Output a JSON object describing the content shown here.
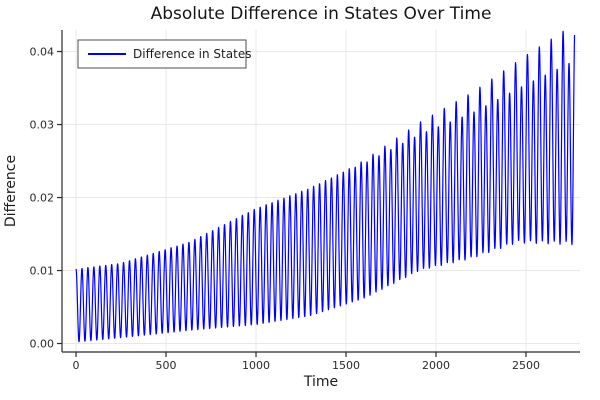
{
  "chart_data": {
    "type": "line",
    "title": "Absolute Difference in States Over Time",
    "xlabel": "Time",
    "ylabel": "Difference",
    "legend": {
      "position": "top-left",
      "entries": [
        {
          "label": "Difference in States",
          "color": "#0000ff"
        }
      ]
    },
    "axes": {
      "xlim": [
        -78,
        2800
      ],
      "ylim": [
        -0.00116,
        0.04295
      ],
      "xticks": [
        0,
        500,
        1000,
        1500,
        2000,
        2500
      ],
      "xtick_labels": [
        "0",
        "500",
        "1000",
        "1500",
        "2000",
        "2500"
      ],
      "yticks": [
        0,
        0.01,
        0.02,
        0.03,
        0.04
      ],
      "ytick_labels": [
        "0.00",
        "0.01",
        "0.02",
        "0.03",
        "0.04"
      ],
      "grid": true
    },
    "series": [
      {
        "name": "Difference in States",
        "color": "#0000ff",
        "description": "Absolute difference oscillating rapidly (period ~33 time units) between a growing lower envelope and a growing upper envelope; early troughs touch ~0, late troughs settle near 0.014 while peaks reach 0.0413",
        "t_range": [
          0,
          2770
        ],
        "period": 33,
        "upper_envelope": [
          [
            0,
            0.0102
          ],
          [
            250,
            0.011
          ],
          [
            630,
            0.0139
          ],
          [
            1000,
            0.0185
          ],
          [
            1300,
            0.0213
          ],
          [
            1600,
            0.0249
          ],
          [
            1910,
            0.0295
          ],
          [
            2200,
            0.033
          ],
          [
            2500,
            0.0375
          ],
          [
            2770,
            0.0413
          ]
        ],
        "lower_envelope": [
          [
            0,
            0.0002
          ],
          [
            250,
            0.0008
          ],
          [
            630,
            0.0018
          ],
          [
            1000,
            0.0026
          ],
          [
            1300,
            0.0038
          ],
          [
            1600,
            0.0062
          ],
          [
            1910,
            0.0101
          ],
          [
            2200,
            0.0118
          ],
          [
            2450,
            0.014
          ],
          [
            2770,
            0.0138
          ]
        ]
      }
    ],
    "colors": {
      "line": "#0000ff",
      "grid": "#e8e8e8",
      "axis": "#2a2a2a",
      "background": "#ffffff",
      "legend_border": "#4d4d4d"
    }
  }
}
